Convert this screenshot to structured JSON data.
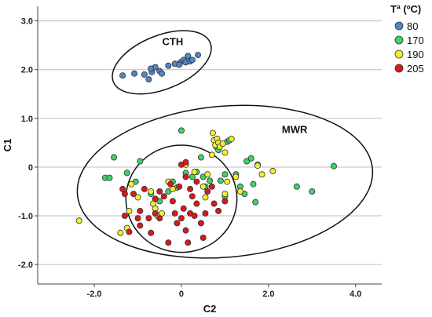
{
  "chart_data": {
    "type": "scatter",
    "xlabel": "C2",
    "ylabel": "C1",
    "xlim": [
      -3.3,
      4.6
    ],
    "ylim": [
      -2.4,
      3.3
    ],
    "x_ticks": [
      -2.0,
      0,
      2.0,
      4.0
    ],
    "x_tick_labels": [
      "-2.0",
      "0",
      "2.0",
      "4.0"
    ],
    "y_ticks": [
      -2.0,
      -1.0,
      0,
      1.0,
      2.0,
      3.0
    ],
    "y_tick_labels": [
      "-2.0",
      "-1.0",
      "0",
      "1.0",
      "2.0",
      "3.0"
    ],
    "grid": "horizontal",
    "legend": {
      "title": "Tª (ºC)",
      "placement": "top-right",
      "entries": [
        {
          "label": "80",
          "color": "#4F86C6"
        },
        {
          "label": "170",
          "color": "#3ED06A"
        },
        {
          "label": "190",
          "color": "#F5EE2E"
        },
        {
          "label": "205",
          "color": "#D7191C"
        }
      ]
    },
    "annotations": [
      {
        "text": "CTH",
        "x": -0.2,
        "y": 2.5
      },
      {
        "text": "MWR",
        "x": 2.6,
        "y": 0.7
      }
    ],
    "ellipses": [
      {
        "name": "CTH",
        "cx": -0.45,
        "cy": 2.15,
        "rx": 2.4,
        "ry": 0.55,
        "angle": 22
      },
      {
        "name": "MWR",
        "cx": 1.0,
        "cy": -0.3,
        "rx": 6.8,
        "ry": 1.55,
        "angle": 5
      },
      {
        "name": "inner",
        "cx": 0.0,
        "cy": -0.65,
        "rx": 2.55,
        "ry": 1.1,
        "angle": 0
      }
    ],
    "series": [
      {
        "name": "80",
        "color": "#4F86C6",
        "points": [
          [
            -1.35,
            1.88
          ],
          [
            -1.08,
            1.92
          ],
          [
            -0.85,
            1.9
          ],
          [
            -0.75,
            1.8
          ],
          [
            -0.68,
            1.95
          ],
          [
            -0.6,
            2.05
          ],
          [
            -0.5,
            1.97
          ],
          [
            -0.45,
            1.92
          ],
          [
            -0.3,
            2.08
          ],
          [
            -0.15,
            2.12
          ],
          [
            -0.02,
            2.15
          ],
          [
            0.05,
            2.2
          ],
          [
            0.1,
            2.15
          ],
          [
            0.15,
            2.28
          ],
          [
            0.2,
            2.17
          ],
          [
            0.25,
            2.2
          ],
          [
            0.38,
            2.3
          ],
          [
            -0.7,
            2.02
          ],
          [
            -0.05,
            2.1
          ]
        ]
      },
      {
        "name": "170",
        "color": "#3ED06A",
        "points": [
          [
            -1.75,
            -0.22
          ],
          [
            -1.65,
            -0.22
          ],
          [
            -1.55,
            0.2
          ],
          [
            -1.25,
            -0.12
          ],
          [
            -0.95,
            0.12
          ],
          [
            -1.05,
            -0.3
          ],
          [
            -0.7,
            -0.55
          ],
          [
            -0.5,
            -0.7
          ],
          [
            -0.3,
            -0.5
          ],
          [
            -0.1,
            -0.42
          ],
          [
            0.0,
            0.75
          ],
          [
            0.1,
            -0.12
          ],
          [
            0.25,
            -0.2
          ],
          [
            0.35,
            -0.1
          ],
          [
            0.5,
            -0.2
          ],
          [
            0.55,
            -0.4
          ],
          [
            0.65,
            -0.28
          ],
          [
            0.8,
            0.42
          ],
          [
            0.85,
            0.35
          ],
          [
            0.9,
            -0.28
          ],
          [
            1.0,
            -0.15
          ],
          [
            1.05,
            0.52
          ],
          [
            1.1,
            0.55
          ],
          [
            1.25,
            -0.15
          ],
          [
            1.35,
            -0.4
          ],
          [
            1.45,
            -0.55
          ],
          [
            1.5,
            0.12
          ],
          [
            1.6,
            0.18
          ],
          [
            1.65,
            -0.35
          ],
          [
            1.75,
            0.05
          ],
          [
            1.7,
            -0.72
          ],
          [
            2.65,
            -0.4
          ],
          [
            3.0,
            -0.5
          ],
          [
            3.5,
            0.02
          ],
          [
            0.45,
            0.2
          ],
          [
            1.0,
            -0.6
          ],
          [
            -0.2,
            -0.3
          ]
        ]
      },
      {
        "name": "190",
        "color": "#F5EE2E",
        "points": [
          [
            -2.35,
            -1.1
          ],
          [
            -1.4,
            -1.35
          ],
          [
            -1.25,
            -1.25
          ],
          [
            -1.2,
            -0.9
          ],
          [
            -1.15,
            -0.35
          ],
          [
            -1.0,
            -0.62
          ],
          [
            -0.7,
            -0.5
          ],
          [
            -0.65,
            -0.75
          ],
          [
            -0.6,
            -0.85
          ],
          [
            -0.55,
            -1.0
          ],
          [
            -0.45,
            -0.95
          ],
          [
            -0.3,
            -0.3
          ],
          [
            -0.2,
            -0.45
          ],
          [
            0.1,
            0.05
          ],
          [
            0.3,
            -0.1
          ],
          [
            0.5,
            -0.4
          ],
          [
            0.6,
            -0.15
          ],
          [
            0.7,
            0.25
          ],
          [
            0.72,
            0.7
          ],
          [
            0.75,
            0.55
          ],
          [
            0.78,
            0.45
          ],
          [
            0.82,
            0.58
          ],
          [
            0.85,
            0.5
          ],
          [
            0.88,
            0.42
          ],
          [
            0.95,
            0.48
          ],
          [
            1.0,
            0.3
          ],
          [
            1.05,
            -0.3
          ],
          [
            1.15,
            0.58
          ],
          [
            1.25,
            -0.2
          ],
          [
            1.35,
            -0.5
          ],
          [
            1.75,
            0.03
          ],
          [
            1.85,
            -0.15
          ],
          [
            2.1,
            -0.08
          ],
          [
            1.0,
            -0.55
          ],
          [
            0.55,
            -0.62
          ]
        ]
      },
      {
        "name": "205",
        "color": "#D7191C",
        "points": [
          [
            -1.3,
            -1.0
          ],
          [
            -1.2,
            -1.33
          ],
          [
            -1.0,
            -1.05
          ],
          [
            -0.95,
            -1.2
          ],
          [
            -1.3,
            -0.55
          ],
          [
            -1.35,
            -0.45
          ],
          [
            -0.95,
            -0.9
          ],
          [
            -0.75,
            -1.05
          ],
          [
            -0.7,
            -1.35
          ],
          [
            -0.6,
            -0.95
          ],
          [
            -0.5,
            -1.05
          ],
          [
            -0.4,
            -0.6
          ],
          [
            -0.3,
            -1.55
          ],
          [
            -0.2,
            -0.7
          ],
          [
            -0.15,
            -0.95
          ],
          [
            -0.1,
            -1.15
          ],
          [
            0.0,
            -1.05
          ],
          [
            0.05,
            -0.85
          ],
          [
            0.1,
            -1.3
          ],
          [
            0.15,
            -1.55
          ],
          [
            0.2,
            -0.95
          ],
          [
            0.25,
            -0.6
          ],
          [
            0.3,
            -1.0
          ],
          [
            0.35,
            -0.75
          ],
          [
            0.45,
            -1.15
          ],
          [
            0.55,
            -0.95
          ],
          [
            0.6,
            -0.5
          ],
          [
            0.7,
            -0.4
          ],
          [
            0.75,
            -0.75
          ],
          [
            0.85,
            -0.9
          ],
          [
            1.0,
            -0.7
          ],
          [
            -0.05,
            -0.4
          ],
          [
            0.1,
            -0.2
          ],
          [
            0.0,
            0.05
          ],
          [
            0.1,
            0.1
          ],
          [
            -0.25,
            -0.35
          ],
          [
            -0.5,
            -0.5
          ],
          [
            -0.85,
            -0.45
          ],
          [
            -1.1,
            -0.55
          ],
          [
            0.35,
            -0.3
          ],
          [
            0.5,
            -1.45
          ],
          [
            -0.6,
            -0.65
          ],
          [
            0.2,
            -0.45
          ]
        ]
      }
    ]
  }
}
